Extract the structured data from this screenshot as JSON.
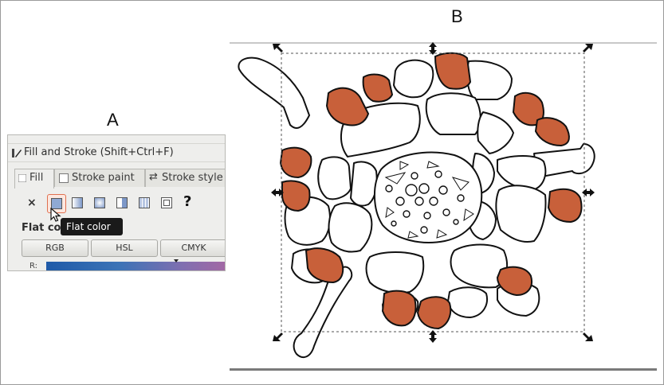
{
  "labels": {
    "a": "A",
    "b": "B"
  },
  "dialog": {
    "title": "Fill and Stroke (Shift+Ctrl+F)",
    "tabs": [
      {
        "label": "Fill",
        "active": true
      },
      {
        "label": "Stroke paint",
        "active": false
      },
      {
        "label": "Stroke style",
        "active": false
      }
    ],
    "toolbar": {
      "no_paint": "×",
      "unset": "?"
    },
    "tooltip": "Flat color",
    "section_label": "Flat co",
    "modes": [
      "RGB",
      "HSL",
      "CMYK"
    ],
    "channel_label": "R:"
  },
  "colors": {
    "epidermis_fill": "#c8603a",
    "cell_fill": "#ffffff",
    "outline": "#111111",
    "selection_box": "#555555"
  }
}
